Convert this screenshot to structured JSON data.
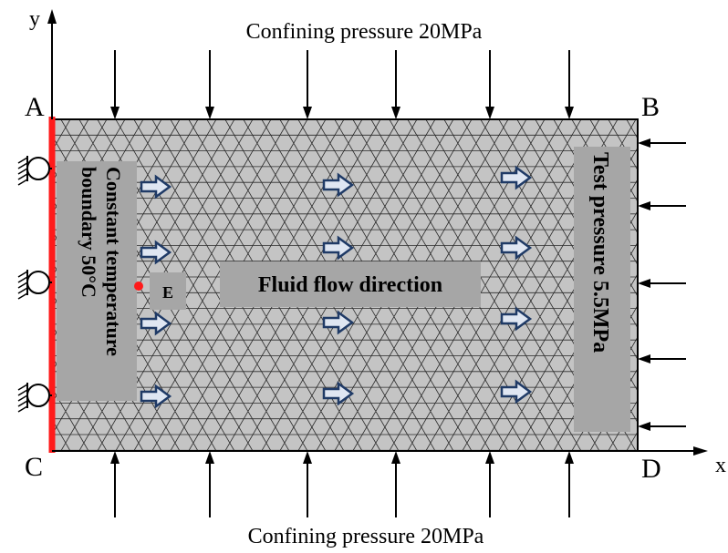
{
  "axes": {
    "x_label": "x",
    "y_label": "y"
  },
  "corners": {
    "top_left": "A",
    "top_right": "B",
    "bottom_left": "C",
    "bottom_right": "D"
  },
  "labels": {
    "top_pressure": "Confining pressure 20MPa",
    "bottom_pressure": "Confining pressure 20MPa",
    "left_boundary_line1": "Constant temperature",
    "left_boundary_line2": "boundary 50°C",
    "right_pressure": "Test pressure 5.5MPa",
    "flow": "Fluid flow direction",
    "point": "E"
  },
  "colors": {
    "mesh_fill": "#c4c4c4",
    "mesh_line": "#2a2a2a",
    "boundary": "#ff1a1a",
    "flow_arrow": "#1f3a66",
    "label_box": "#a6a6a6",
    "point": "#ff1a1a"
  },
  "icons": {
    "support": "pin-roller-support-icon",
    "flow_arrow": "hollow-right-arrow-icon"
  }
}
